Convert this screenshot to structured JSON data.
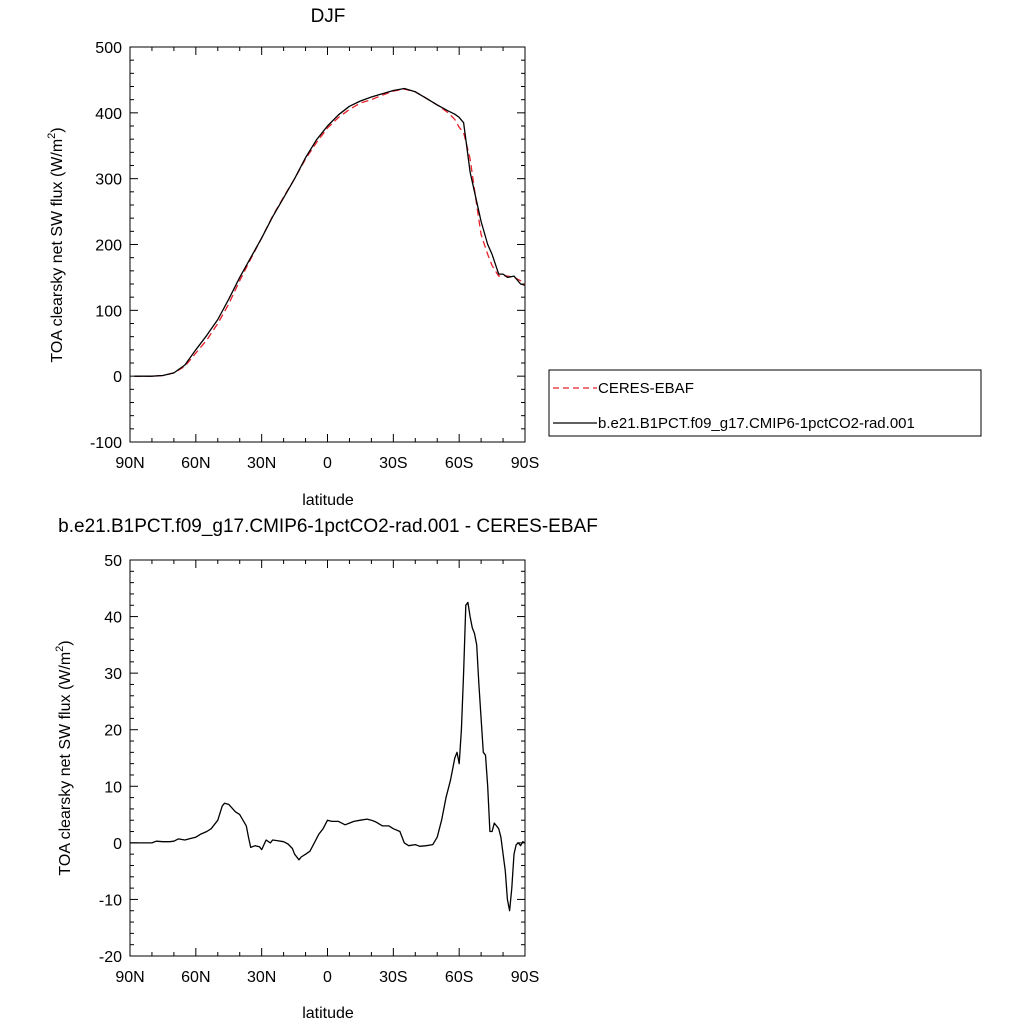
{
  "chart_data": [
    {
      "type": "line",
      "title": "DJF",
      "xlabel": "latitude",
      "ylabel": "TOA clearsky net SW flux (W/m²)",
      "ylabel_parts": {
        "main": "TOA clearsky net SW flux (W/m",
        "sup": "2",
        "end": ")"
      },
      "xlim": [
        -90,
        90
      ],
      "ylim": [
        -100,
        500
      ],
      "x_reversed": true,
      "x_ticks": [
        90,
        60,
        30,
        0,
        -30,
        -60,
        -90
      ],
      "x_tick_labels": [
        "90N",
        "60N",
        "30N",
        "0",
        "30S",
        "60S",
        "90S"
      ],
      "y_ticks": [
        -100,
        0,
        100,
        200,
        300,
        400,
        500
      ],
      "y_tick_labels": [
        "-100",
        "0",
        "100",
        "200",
        "300",
        "400",
        "500"
      ],
      "grid": false,
      "legend": "right",
      "series": [
        {
          "name": "CERES-EBAF",
          "color": "#e8202a",
          "dash": "dashed",
          "x": [
            88,
            80,
            75,
            70,
            65,
            60,
            55,
            50,
            45,
            40,
            35,
            30,
            25,
            20,
            15,
            10,
            5,
            0,
            -5,
            -10,
            -15,
            -20,
            -25,
            -30,
            -35,
            -40,
            -45,
            -50,
            -55,
            -58,
            -60,
            -62,
            -65,
            -68,
            -70,
            -73,
            -75,
            -78,
            -80,
            -82,
            -85,
            -88,
            -90
          ],
          "y": [
            0,
            0,
            1,
            5,
            15,
            35,
            55,
            80,
            110,
            145,
            178,
            210,
            243,
            272,
            300,
            330,
            355,
            377,
            393,
            405,
            415,
            420,
            427,
            433,
            436,
            432,
            422,
            412,
            400,
            390,
            378,
            370,
            330,
            260,
            215,
            185,
            168,
            152,
            153,
            152,
            150,
            145,
            138
          ]
        },
        {
          "name": "b.e21.B1PCT.f09_g17.CMIP6-1pctCO2-rad.001",
          "color": "#000000",
          "dash": "solid",
          "x": [
            88,
            80,
            75,
            70,
            65,
            60,
            55,
            50,
            45,
            40,
            35,
            30,
            25,
            20,
            15,
            10,
            5,
            0,
            -5,
            -10,
            -15,
            -20,
            -25,
            -30,
            -35,
            -40,
            -45,
            -50,
            -55,
            -58,
            -60,
            -62,
            -63,
            -65,
            -68,
            -70,
            -73,
            -75,
            -78,
            -80,
            -82,
            -85,
            -88,
            -90
          ],
          "y": [
            0,
            0,
            1,
            5,
            17,
            40,
            62,
            86,
            117,
            150,
            180,
            210,
            242,
            271,
            300,
            332,
            359,
            380,
            397,
            410,
            418,
            424,
            429,
            434,
            437,
            432,
            422,
            412,
            403,
            398,
            393,
            385,
            360,
            310,
            265,
            235,
            200,
            185,
            155,
            155,
            150,
            152,
            140,
            138
          ]
        }
      ]
    },
    {
      "type": "line",
      "title": "b.e21.B1PCT.f09_g17.CMIP6-1pctCO2-rad.001 - CERES-EBAF",
      "xlabel": "latitude",
      "ylabel": "TOA clearsky net SW flux (W/m²)",
      "ylabel_parts": {
        "main": "TOA clearsky net SW flux (W/m",
        "sup": "2",
        "end": ")"
      },
      "xlim": [
        -90,
        90
      ],
      "ylim": [
        -20,
        50
      ],
      "x_reversed": true,
      "x_ticks": [
        90,
        60,
        30,
        0,
        -30,
        -60,
        -90
      ],
      "x_tick_labels": [
        "90N",
        "60N",
        "30N",
        "0",
        "30S",
        "60S",
        "90S"
      ],
      "y_ticks": [
        -20,
        -10,
        0,
        10,
        20,
        30,
        40,
        50
      ],
      "y_tick_labels": [
        "-20",
        "-10",
        "0",
        "10",
        "20",
        "30",
        "40",
        "50"
      ],
      "grid": false,
      "series": [
        {
          "color": "#000000",
          "dash": "solid",
          "x": [
            90,
            80,
            78,
            75,
            72,
            70,
            68,
            65,
            62,
            60,
            58,
            55,
            53,
            50,
            48,
            47,
            45,
            42,
            40,
            37,
            36,
            35,
            33,
            31,
            30,
            28,
            26,
            25,
            23,
            20,
            18,
            16,
            15,
            13,
            12,
            10,
            8,
            6,
            4,
            2,
            0,
            -2,
            -5,
            -8,
            -10,
            -12,
            -15,
            -18,
            -20,
            -22,
            -25,
            -28,
            -30,
            -33,
            -35,
            -37,
            -40,
            -42,
            -45,
            -48,
            -50,
            -52,
            -54,
            -56,
            -58,
            -59,
            -60,
            -61,
            -62,
            -63,
            -64,
            -65,
            -66,
            -67,
            -68,
            -69,
            -70,
            -71,
            -72,
            -73,
            -74,
            -75,
            -76,
            -77,
            -78,
            -79,
            -80,
            -81,
            -82,
            -83,
            -84,
            -85,
            -86,
            -87,
            -88,
            -89,
            -90
          ],
          "y": [
            0,
            0,
            0.3,
            0.2,
            0.2,
            0.3,
            0.7,
            0.5,
            0.8,
            1,
            1.5,
            2,
            2.5,
            4,
            6.5,
            7,
            6.8,
            5.5,
            5,
            3,
            1,
            -0.8,
            -0.5,
            -0.7,
            -1.2,
            0.5,
            0,
            0.5,
            0.4,
            0.2,
            -0.2,
            -1,
            -2,
            -3,
            -2.5,
            -2,
            -1.5,
            0,
            1.5,
            2.5,
            4,
            3.8,
            3.8,
            3.2,
            3.5,
            3.8,
            4,
            4.2,
            4,
            3.7,
            3,
            3,
            2.5,
            2,
            0,
            -0.5,
            -0.3,
            -0.6,
            -0.5,
            -0.3,
            1,
            4,
            8,
            11,
            15,
            16,
            14,
            20,
            30,
            42,
            42.5,
            40,
            38,
            37,
            35,
            28,
            22,
            16,
            15.5,
            10,
            2,
            2,
            3.5,
            3,
            2.5,
            1,
            -2,
            -5,
            -10,
            -12,
            -8,
            -2,
            -0.3,
            0,
            -0.5,
            0.2,
            0
          ]
        }
      ]
    }
  ]
}
